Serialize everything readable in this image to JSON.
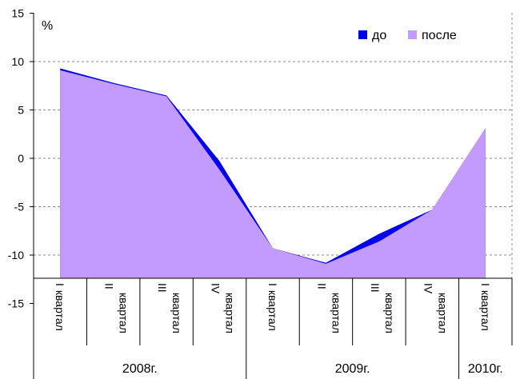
{
  "chart_data": {
    "type": "area",
    "unit_label": "%",
    "ylim": [
      -15,
      15
    ],
    "yticks": [
      15,
      10,
      5,
      0,
      -5,
      -10,
      -15
    ],
    "grid": true,
    "legend_position": "top-right",
    "categories": [
      [
        "I",
        "квартал"
      ],
      [
        "II",
        "квартал"
      ],
      [
        "III",
        "квартал"
      ],
      [
        "IV",
        "квартал"
      ],
      [
        "I",
        "квартал"
      ],
      [
        "II",
        "квартал"
      ],
      [
        "III",
        "квартал"
      ],
      [
        "IV",
        "квартал"
      ],
      [
        "I",
        "квартал"
      ]
    ],
    "years": [
      {
        "label": "2008г.",
        "span": 4
      },
      {
        "label": "2009г.",
        "span": 4
      },
      {
        "label": "2010г.",
        "span": 1
      }
    ],
    "series": [
      {
        "name": "до",
        "color": "#0000ee",
        "values": [
          9.3,
          7.8,
          6.5,
          -0.3,
          -9.3,
          -10.8,
          -7.8,
          -5.3,
          3.1
        ]
      },
      {
        "name": "после",
        "color": "#c39bff",
        "values": [
          9.1,
          7.7,
          6.4,
          -1.2,
          -9.3,
          -10.9,
          -8.6,
          -5.3,
          3.1
        ]
      }
    ]
  }
}
